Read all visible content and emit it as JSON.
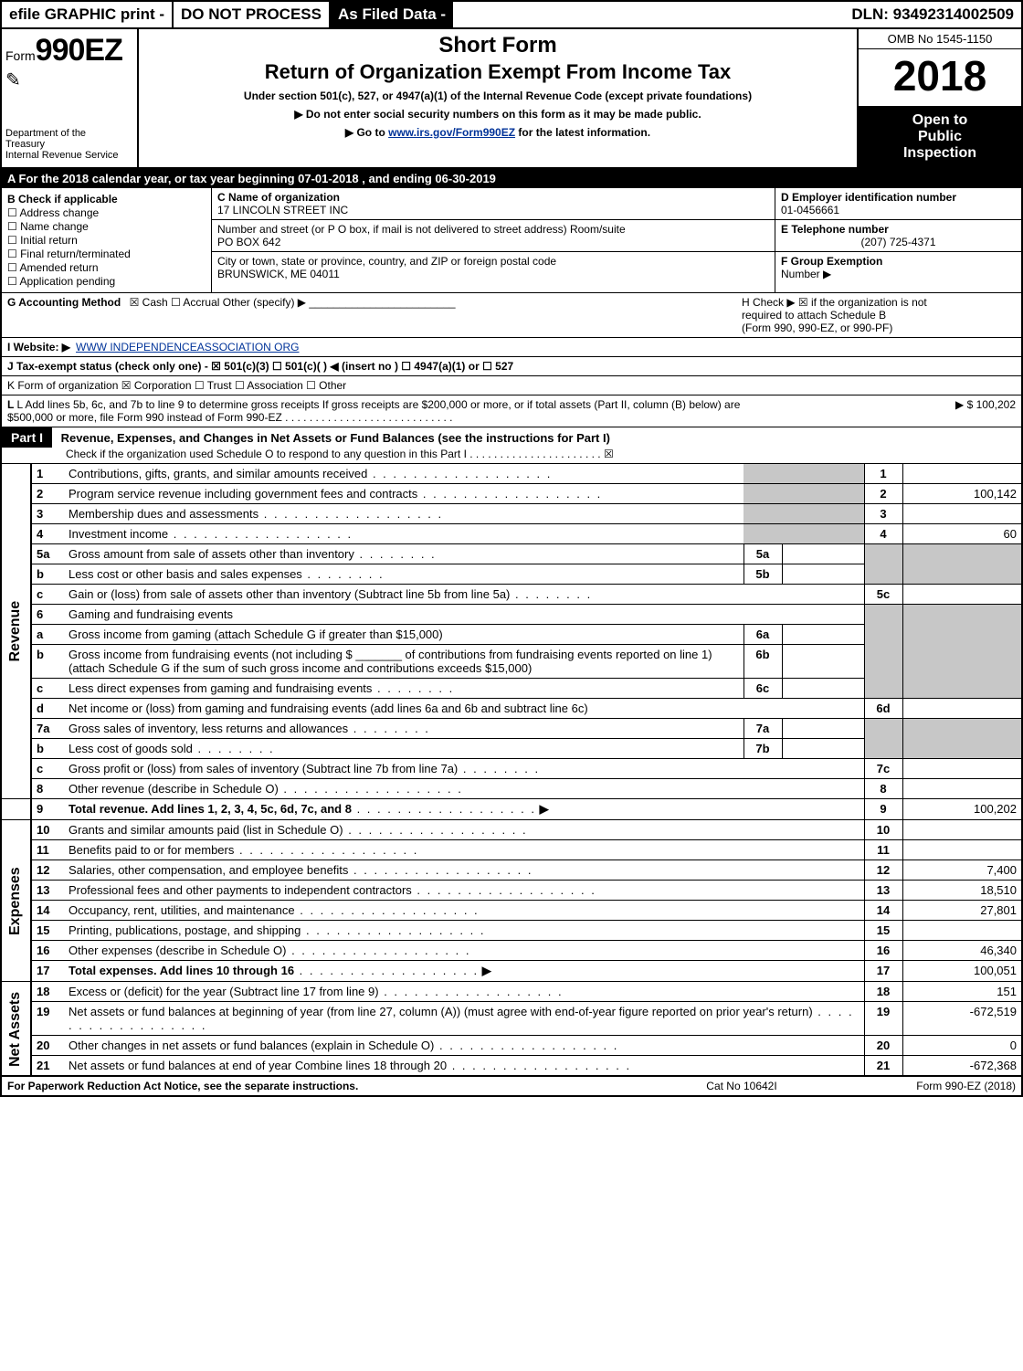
{
  "topbar": {
    "efile": "efile GRAPHIC print -",
    "noproc": "DO NOT PROCESS",
    "asfiled": "As Filed Data -",
    "dln": "DLN: 93492314002509"
  },
  "header": {
    "form_prefix": "Form",
    "form_number": "990EZ",
    "dept1": "Department of the",
    "dept2": "Treasury",
    "dept3": "Internal Revenue Service",
    "short_form": "Short Form",
    "title": "Return of Organization Exempt From Income Tax",
    "under": "Under section 501(c), 527, or 4947(a)(1) of the Internal Revenue Code (except private foundations)",
    "warn": "Do not enter social security numbers on this form as it may be made public.",
    "goto_pre": "Go to ",
    "goto_link": "www.irs.gov/Form990EZ",
    "goto_post": " for the latest information.",
    "omb": "OMB No  1545-1150",
    "year": "2018",
    "open1": "Open to",
    "open2": "Public",
    "open3": "Inspection"
  },
  "lineA": "A  For the 2018 calendar year, or tax year beginning 07-01-2018           , and ending 06-30-2019",
  "boxB": {
    "title": "B  Check if applicable",
    "items": [
      "Address change",
      "Name change",
      "Initial return",
      "Final return/terminated",
      "Amended return",
      "Application pending"
    ]
  },
  "boxC": {
    "label": "C Name of organization",
    "name": "17 LINCOLN STREET INC",
    "addr_label": "Number and street (or P  O  box, if mail is not delivered to street address)  Room/suite",
    "addr": "PO BOX 642",
    "city_label": "City or town, state or province, country, and ZIP or foreign postal code",
    "city": "BRUNSWICK, ME  04011"
  },
  "boxD": {
    "label": "D Employer identification number",
    "val": "01-0456661"
  },
  "boxE": {
    "label": "E Telephone number",
    "val": "(207) 725-4371"
  },
  "boxF": {
    "label": "F Group Exemption",
    "label2": "Number  ▶"
  },
  "lineG": {
    "label": "G Accounting Method",
    "val": "☒ Cash   ☐ Accrual   Other (specify) ▶",
    "side_label": "H   Check ▶  ☒  if the organization is not",
    "side2": "required to attach Schedule B",
    "side3": "(Form 990, 990-EZ, or 990-PF)"
  },
  "lineI": {
    "label": "I Website: ▶",
    "val": "WWW INDEPENDENCEASSOCIATION ORG"
  },
  "lineJ": "J Tax-exempt status (check only one) -  ☒ 501(c)(3)   ☐  501(c)(  ) ◀ (insert no ) ☐  4947(a)(1) or  ☐  527",
  "lineK": "K Form of organization     ☒ Corporation   ☐ Trust   ☐ Association   ☐ Other",
  "lineL": {
    "text": "L Add lines 5b, 6c, and 7b to line 9 to determine gross receipts  If gross receipts are $200,000 or more, or if total assets (Part II, column (B) below) are $500,000 or more, file Form 990 instead of Form 990-EZ",
    "amount": "▶ $ 100,202"
  },
  "part1": {
    "label": "Part I",
    "title": "Revenue, Expenses, and Changes in Net Assets or Fund Balances (see the instructions for Part I)",
    "sub": "Check if the organization used Schedule O to respond to any question in this Part I . . . . . . . . . . . . . . . . . . . . . . ☒"
  },
  "sections": {
    "revenue": "Revenue",
    "expenses": "Expenses",
    "netassets": "Net Assets"
  },
  "rows": {
    "r1": {
      "n": "1",
      "d": "Contributions, gifts, grants, and similar amounts received",
      "on": "1",
      "ov": ""
    },
    "r2": {
      "n": "2",
      "d": "Program service revenue including government fees and contracts",
      "on": "2",
      "ov": "100,142"
    },
    "r3": {
      "n": "3",
      "d": "Membership dues and assessments",
      "on": "3",
      "ov": ""
    },
    "r4": {
      "n": "4",
      "d": "Investment income",
      "on": "4",
      "ov": "60"
    },
    "r5a": {
      "n": "5a",
      "d": "Gross amount from sale of assets other than inventory",
      "in": "5a",
      "iv": ""
    },
    "r5b": {
      "n": "b",
      "d": "Less  cost or other basis and sales expenses",
      "in": "5b",
      "iv": ""
    },
    "r5c": {
      "n": "c",
      "d": "Gain or (loss) from sale of assets other than inventory (Subtract line 5b from line 5a)",
      "on": "5c",
      "ov": ""
    },
    "r6": {
      "n": "6",
      "d": "Gaming and fundraising events"
    },
    "r6a": {
      "n": "a",
      "d": "Gross income from gaming (attach Schedule G if greater than $15,000)",
      "in": "6a",
      "iv": ""
    },
    "r6b": {
      "n": "b",
      "d": "Gross income from fundraising events (not including $ _______ of contributions from fundraising events reported on line 1) (attach Schedule G if the sum of such gross income and contributions exceeds $15,000)",
      "in": "6b",
      "iv": ""
    },
    "r6c": {
      "n": "c",
      "d": "Less  direct expenses from gaming and fundraising events",
      "in": "6c",
      "iv": ""
    },
    "r6d": {
      "n": "d",
      "d": "Net income or (loss) from gaming and fundraising events (add lines 6a and 6b and subtract line 6c)",
      "on": "6d",
      "ov": ""
    },
    "r7a": {
      "n": "7a",
      "d": "Gross sales of inventory, less returns and allowances",
      "in": "7a",
      "iv": ""
    },
    "r7b": {
      "n": "b",
      "d": "Less  cost of goods sold",
      "in": "7b",
      "iv": ""
    },
    "r7c": {
      "n": "c",
      "d": "Gross profit or (loss) from sales of inventory (Subtract line 7b from line 7a)",
      "on": "7c",
      "ov": ""
    },
    "r8": {
      "n": "8",
      "d": "Other revenue (describe in Schedule O)",
      "on": "8",
      "ov": ""
    },
    "r9": {
      "n": "9",
      "d": "Total revenue. Add lines 1, 2, 3, 4, 5c, 6d, 7c, and 8",
      "on": "9",
      "ov": "100,202",
      "bold": true,
      "arrow": true
    },
    "r10": {
      "n": "10",
      "d": "Grants and similar amounts paid (list in Schedule O)",
      "on": "10",
      "ov": ""
    },
    "r11": {
      "n": "11",
      "d": "Benefits paid to or for members",
      "on": "11",
      "ov": ""
    },
    "r12": {
      "n": "12",
      "d": "Salaries, other compensation, and employee benefits",
      "on": "12",
      "ov": "7,400"
    },
    "r13": {
      "n": "13",
      "d": "Professional fees and other payments to independent contractors",
      "on": "13",
      "ov": "18,510"
    },
    "r14": {
      "n": "14",
      "d": "Occupancy, rent, utilities, and maintenance",
      "on": "14",
      "ov": "27,801"
    },
    "r15": {
      "n": "15",
      "d": "Printing, publications, postage, and shipping",
      "on": "15",
      "ov": ""
    },
    "r16": {
      "n": "16",
      "d": "Other expenses (describe in Schedule O)",
      "on": "16",
      "ov": "46,340"
    },
    "r17": {
      "n": "17",
      "d": "Total expenses. Add lines 10 through 16",
      "on": "17",
      "ov": "100,051",
      "bold": true,
      "arrow": true
    },
    "r18": {
      "n": "18",
      "d": "Excess or (deficit) for the year (Subtract line 17 from line 9)",
      "on": "18",
      "ov": "151"
    },
    "r19": {
      "n": "19",
      "d": "Net assets or fund balances at beginning of year (from line 27, column (A)) (must agree with end-of-year figure reported on prior year's return)",
      "on": "19",
      "ov": "-672,519"
    },
    "r20": {
      "n": "20",
      "d": "Other changes in net assets or fund balances (explain in Schedule O)",
      "on": "20",
      "ov": "0"
    },
    "r21": {
      "n": "21",
      "d": "Net assets or fund balances at end of year  Combine lines 18 through 20",
      "on": "21",
      "ov": "-672,368"
    }
  },
  "footer": {
    "left": "For Paperwork Reduction Act Notice, see the separate instructions.",
    "center": "Cat  No  10642I",
    "right": "Form 990-EZ (2018)"
  }
}
